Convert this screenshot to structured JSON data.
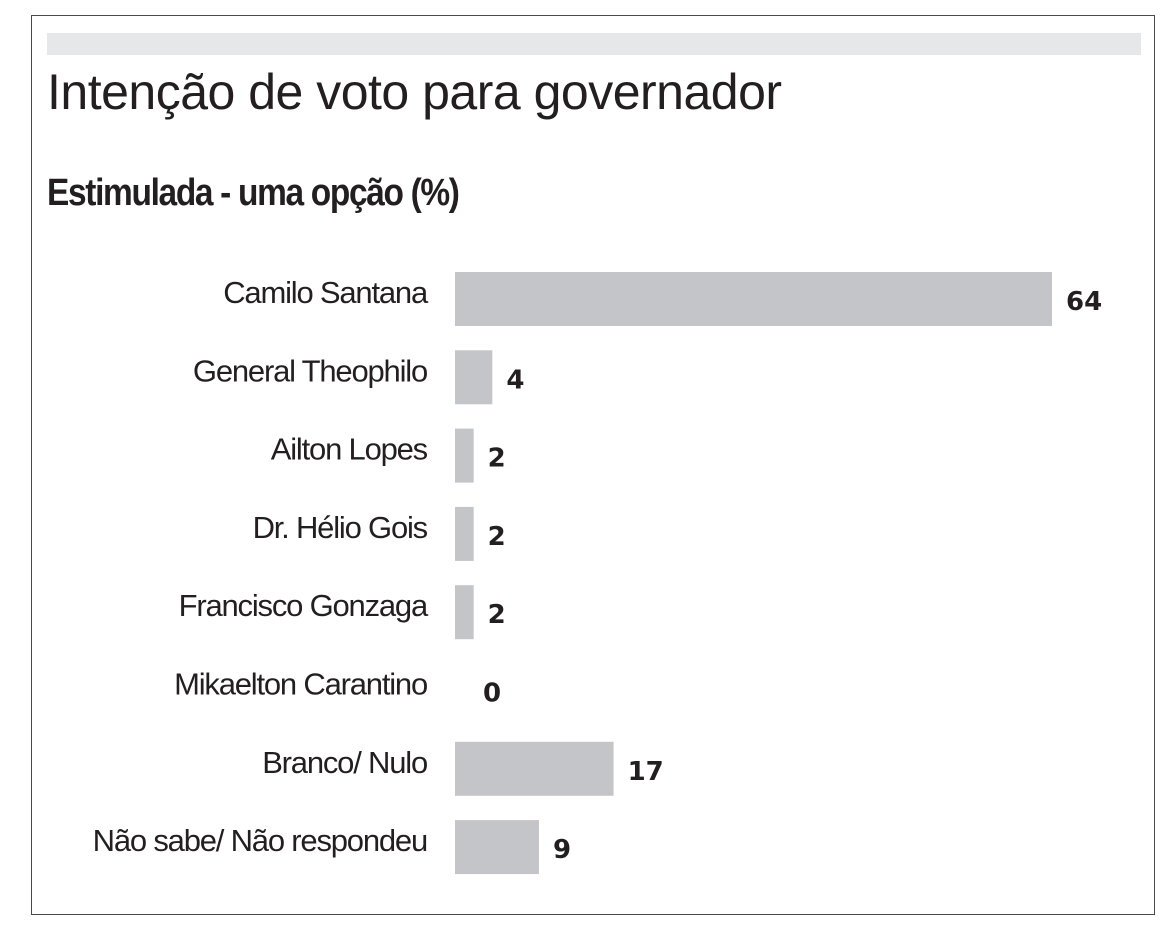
{
  "chart_data": {
    "type": "bar",
    "orientation": "horizontal",
    "title": "Intenção de voto para governador",
    "subtitle": "Estimulada - uma opção (%)",
    "categories": [
      "Camilo Santana",
      "General Theophilo",
      "Ailton Lopes",
      "Dr. Hélio Gois",
      "Francisco Gonzaga",
      "Mikaelton Carantino",
      "Branco/ Nulo",
      "Não sabe/ Não respondeu"
    ],
    "values": [
      64,
      4,
      2,
      2,
      2,
      0,
      17,
      9
    ],
    "value_labels": [
      "64",
      "4",
      "2",
      "2",
      "2",
      "0",
      "17",
      "9"
    ],
    "xlim": [
      0,
      64
    ],
    "grid": false,
    "legend": "none",
    "colors": {
      "bar": "#c4c5c9",
      "text": "#231f20",
      "top_bar": "#e6e7e8",
      "frame": "#4a4a4a"
    }
  }
}
